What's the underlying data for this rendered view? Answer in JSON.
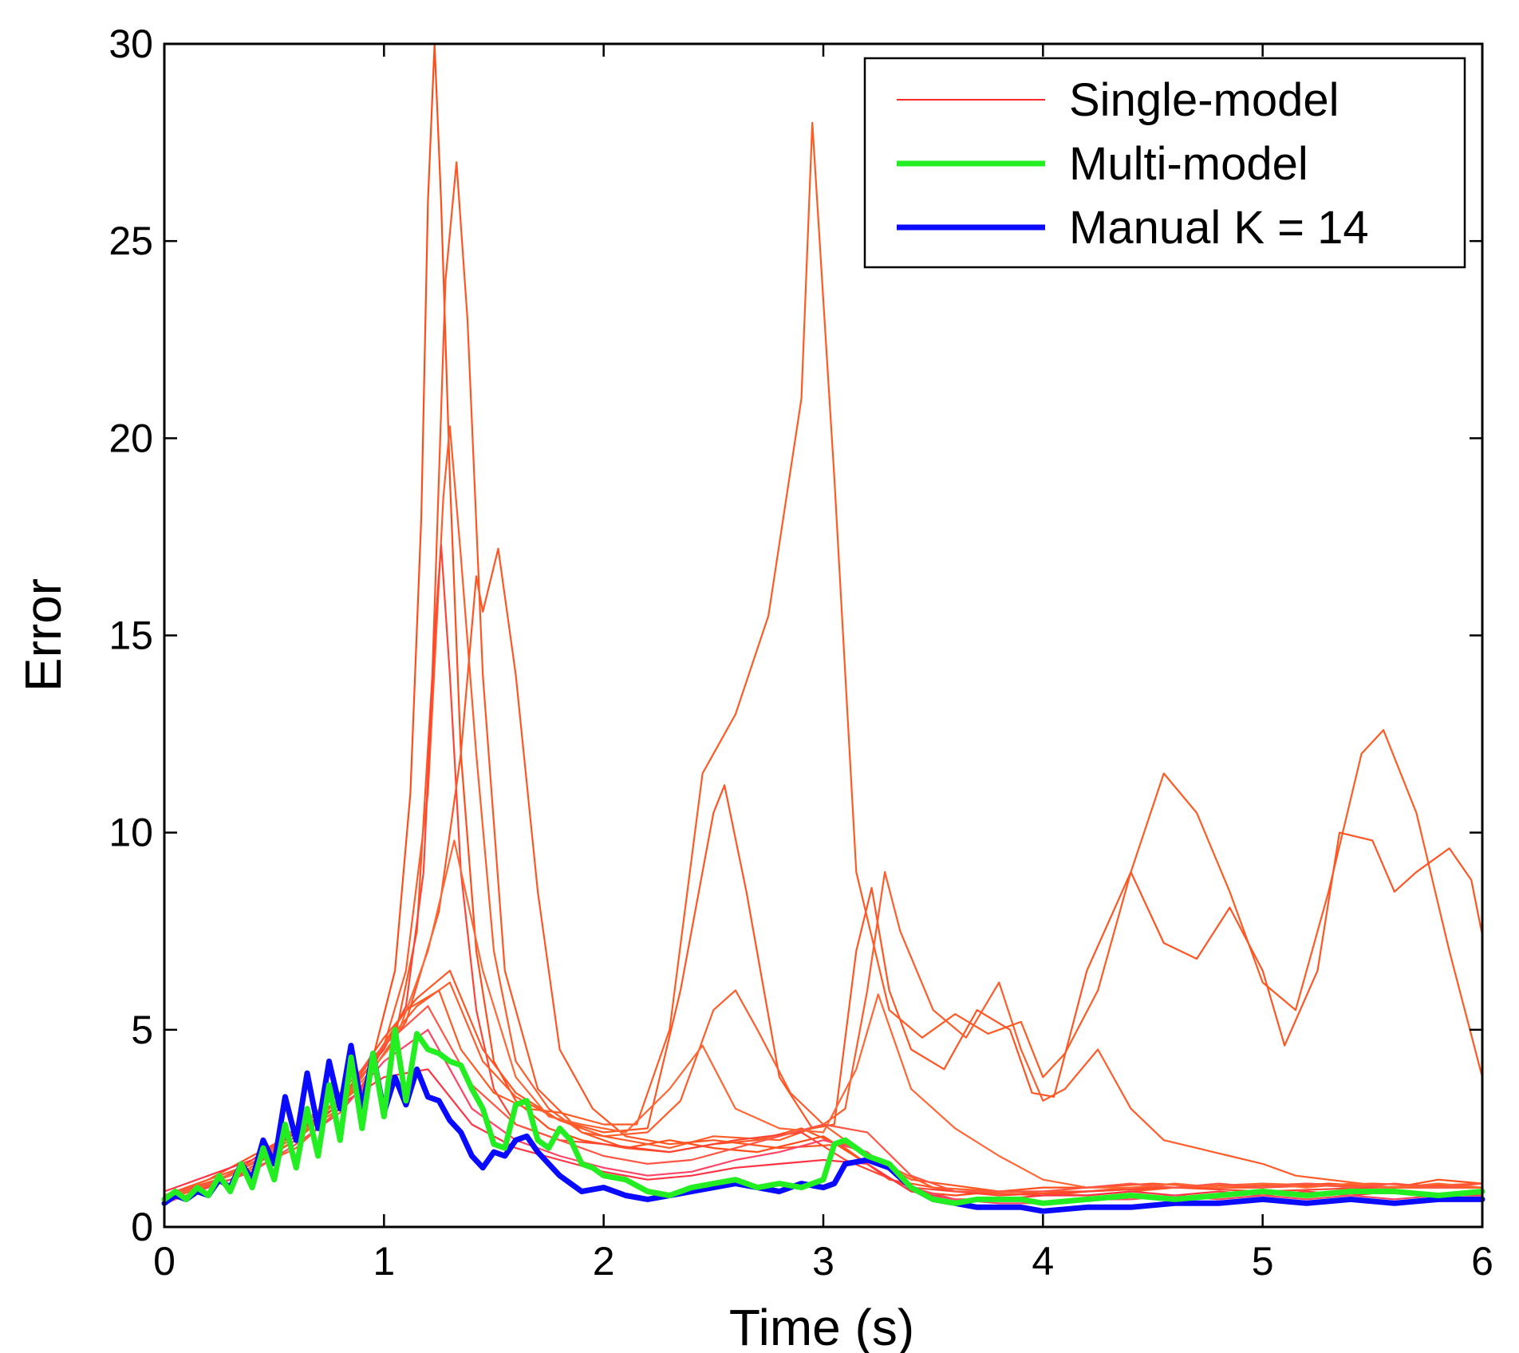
{
  "chart_data": {
    "type": "line",
    "xlabel": "Time (s)",
    "ylabel": "Error",
    "xlim": [
      0,
      6
    ],
    "ylim": [
      0,
      30
    ],
    "xticks": [
      0,
      1,
      2,
      3,
      4,
      5,
      6
    ],
    "yticks": [
      0,
      5,
      10,
      15,
      20,
      25,
      30
    ],
    "grid": false,
    "legend_position": "top-right",
    "legend": [
      {
        "label": "Single-model",
        "color": "#ff2a2a"
      },
      {
        "label": "Multi-model",
        "color": "#22ee22"
      },
      {
        "label": "Manual K = 14",
        "color": "#0a0aff"
      }
    ],
    "series": [
      {
        "name": "Single-model",
        "color": "#ff4d1a",
        "role": "single",
        "x": [
          0,
          0.2,
          0.4,
          0.6,
          0.8,
          0.95,
          1.05,
          1.12,
          1.17,
          1.2,
          1.23,
          1.26,
          1.3,
          1.35,
          1.42,
          1.5,
          1.6,
          1.75,
          1.9,
          2.1,
          2.3,
          2.5,
          2.7,
          2.85,
          3.0,
          3.2,
          3.4,
          3.6,
          3.8,
          4.0,
          4.2,
          4.5,
          4.8,
          5.0,
          5.3,
          5.6,
          5.8,
          6.0
        ],
        "y": [
          0.8,
          1.2,
          1.8,
          2.4,
          3.2,
          4.3,
          6.5,
          11,
          18,
          26,
          30,
          26,
          19,
          12,
          7,
          4.2,
          3.2,
          2.5,
          2.2,
          2.0,
          2.2,
          2.0,
          1.9,
          2.1,
          2.3,
          1.6,
          0.9,
          0.8,
          0.9,
          1.0,
          1.0,
          1.1,
          1.0,
          1.0,
          1.1,
          1.0,
          1.2,
          1.1
        ]
      },
      {
        "name": "Single-model",
        "color": "#ff5522",
        "role": "single",
        "x": [
          0,
          0.3,
          0.6,
          0.9,
          1.05,
          1.15,
          1.22,
          1.28,
          1.33,
          1.38,
          1.45,
          1.55,
          1.7,
          1.9,
          2.1,
          2.3,
          2.5,
          2.7,
          2.9,
          3.1,
          3.3,
          3.6,
          4.0,
          4.4,
          4.8,
          5.2,
          5.6,
          6.0
        ],
        "y": [
          0.7,
          1.3,
          2.5,
          3.6,
          4.8,
          7.5,
          14,
          24,
          27,
          23,
          14,
          6.5,
          3.5,
          2.4,
          2.0,
          1.9,
          2.1,
          2.2,
          2.5,
          2.0,
          1.2,
          0.9,
          0.8,
          1.0,
          1.0,
          1.1,
          1.0,
          1.0
        ]
      },
      {
        "name": "Single-model",
        "color": "#ff5c2a",
        "role": "single",
        "x": [
          0,
          0.3,
          0.6,
          0.9,
          1.0,
          1.1,
          1.2,
          1.27,
          1.3,
          1.35,
          1.42,
          1.5,
          1.6,
          1.75,
          1.9,
          2.1,
          2.3,
          2.5,
          2.8,
          3.0,
          3.2,
          3.5,
          3.8,
          4.2,
          4.6,
          5.0,
          5.5,
          6.0
        ],
        "y": [
          0.8,
          1.2,
          2.0,
          3.5,
          4.6,
          6.5,
          11,
          18.5,
          20.3,
          17,
          12,
          7,
          4.2,
          3.0,
          2.4,
          2.2,
          2.0,
          2.3,
          2.2,
          2.6,
          1.8,
          1.0,
          0.9,
          0.9,
          1.0,
          1.1,
          1.0,
          1.1
        ]
      },
      {
        "name": "Single-model",
        "color": "#ff4433",
        "role": "single",
        "x": [
          0,
          0.4,
          0.8,
          1.0,
          1.1,
          1.18,
          1.23,
          1.26,
          1.3,
          1.35,
          1.42,
          1.5,
          1.6,
          1.8,
          2.0,
          2.3,
          2.6,
          2.9,
          3.1,
          3.4,
          3.8,
          4.2,
          4.6,
          5.0,
          5.5,
          6.0
        ],
        "y": [
          0.8,
          1.6,
          3.2,
          4.5,
          5.6,
          9,
          15,
          17.3,
          14,
          9,
          5.5,
          3.5,
          2.6,
          2.2,
          2.1,
          1.9,
          2.2,
          2.4,
          1.7,
          1.0,
          0.8,
          0.9,
          1.0,
          0.9,
          1.0,
          1.0
        ]
      },
      {
        "name": "Single-model",
        "color": "#ff5522",
        "role": "single",
        "x": [
          0,
          0.3,
          0.6,
          0.9,
          1.1,
          1.25,
          1.35,
          1.42,
          1.45,
          1.52,
          1.6,
          1.7,
          1.8,
          1.95,
          2.1,
          2.3,
          2.5,
          2.8,
          3.1,
          3.4,
          3.8,
          4.2,
          4.6,
          5.0,
          5.5,
          6.0
        ],
        "y": [
          0.7,
          1.2,
          2.2,
          3.6,
          5.2,
          8,
          12,
          16.5,
          15.6,
          17.2,
          14,
          8.5,
          4.5,
          3.0,
          2.3,
          2.1,
          2.2,
          2.0,
          2.1,
          1.2,
          0.9,
          0.8,
          1.0,
          1.0,
          1.1,
          1.0
        ]
      },
      {
        "name": "Single-model",
        "color": "#ff5a22",
        "role": "single",
        "x": [
          0,
          0.3,
          0.6,
          0.9,
          1.1,
          1.25,
          1.35,
          1.5,
          1.65,
          1.8,
          2.0,
          2.15,
          2.3,
          2.45,
          2.6,
          2.75,
          2.9,
          2.95,
          3.05,
          3.15,
          3.3,
          3.45,
          3.6,
          3.75,
          3.9,
          4.0,
          4.1,
          4.25,
          4.4,
          4.55,
          4.7,
          4.85,
          5.0,
          5.15,
          5.3,
          5.45,
          5.55,
          5.7,
          5.85,
          6.0
        ],
        "y": [
          0.8,
          1.3,
          2.2,
          3.8,
          5.5,
          6.0,
          4.5,
          3.4,
          3.0,
          2.9,
          2.6,
          2.6,
          5.0,
          11.5,
          13.0,
          15.5,
          21,
          28,
          19,
          9,
          5.5,
          4.8,
          5.4,
          4.9,
          5.2,
          3.8,
          4.4,
          6.0,
          9.0,
          11.5,
          10.5,
          8.5,
          6.2,
          5.5,
          8.5,
          12.0,
          12.6,
          10.5,
          7.0,
          3.8
        ]
      },
      {
        "name": "Single-model",
        "color": "#ff5522",
        "role": "single",
        "x": [
          0,
          0.4,
          0.8,
          1.0,
          1.15,
          1.3,
          1.45,
          1.6,
          1.8,
          2.0,
          2.2,
          2.35,
          2.5,
          2.55,
          2.65,
          2.8,
          2.95,
          3.05,
          3.15,
          3.22,
          3.3,
          3.4,
          3.55,
          3.7,
          3.85,
          3.95,
          4.05,
          4.2,
          4.4,
          4.55,
          4.7,
          4.85,
          5.0,
          5.1,
          5.25,
          5.35,
          5.5,
          5.6,
          5.7,
          5.85,
          5.95,
          6.0
        ],
        "y": [
          0.8,
          1.6,
          3.2,
          4.8,
          5.8,
          6.5,
          4.5,
          3.4,
          2.7,
          2.4,
          2.5,
          6.0,
          10.5,
          11.2,
          8.5,
          3.8,
          2.5,
          2.6,
          7.0,
          8.6,
          6.0,
          4.5,
          4.0,
          5.5,
          5.0,
          3.4,
          3.3,
          6.5,
          9.0,
          7.2,
          6.8,
          8.1,
          6.5,
          4.6,
          6.5,
          10.0,
          9.8,
          8.5,
          9.0,
          9.6,
          8.8,
          7.4
        ]
      },
      {
        "name": "Single-model",
        "color": "#ff5c2a",
        "role": "single",
        "x": [
          0,
          0.4,
          0.8,
          1.0,
          1.15,
          1.3,
          1.45,
          1.6,
          1.8,
          2.0,
          2.2,
          2.35,
          2.5,
          2.6,
          2.7,
          2.85,
          3.0,
          3.1,
          3.2,
          3.28,
          3.35,
          3.5,
          3.65,
          3.8,
          3.9,
          4.0,
          4.1,
          4.25,
          4.4,
          4.55,
          4.7,
          4.85,
          5.0,
          5.15,
          5.3,
          5.45,
          5.55,
          5.7,
          5.85,
          6.0
        ],
        "y": [
          0.8,
          1.6,
          3.0,
          4.6,
          5.6,
          6.2,
          4.2,
          3.3,
          2.7,
          2.3,
          2.4,
          3.2,
          5.5,
          6.0,
          5.0,
          3.4,
          2.6,
          3.0,
          6.0,
          9.0,
          7.5,
          5.5,
          4.8,
          6.2,
          4.5,
          3.2,
          3.5,
          4.5,
          3.0,
          2.2,
          2.0,
          1.8,
          1.6,
          1.3,
          1.2,
          1.1,
          1.0,
          1.0,
          1.0,
          1.0
        ]
      },
      {
        "name": "Single-model",
        "color": "#ff6633",
        "role": "single",
        "x": [
          0,
          0.3,
          0.6,
          0.9,
          1.05,
          1.2,
          1.32,
          1.45,
          1.6,
          1.75,
          1.9,
          2.1,
          2.3,
          2.45,
          2.6,
          2.8,
          3.0,
          3.15,
          3.25,
          3.4,
          3.6,
          3.8,
          4.0,
          4.2,
          4.4,
          4.6,
          4.8,
          5.0,
          5.2,
          5.4,
          5.6,
          5.8,
          6.0
        ],
        "y": [
          0.7,
          1.3,
          2.3,
          3.7,
          4.7,
          7.0,
          9.8,
          6.5,
          3.8,
          2.8,
          2.6,
          2.4,
          3.5,
          4.6,
          3.0,
          2.5,
          2.4,
          4.0,
          5.9,
          3.5,
          2.5,
          1.8,
          1.2,
          1.0,
          1.0,
          1.1,
          1.0,
          1.1,
          1.0,
          1.1,
          1.0,
          1.1,
          1.0
        ]
      },
      {
        "name": "Single-model",
        "color": "#ff3344",
        "role": "single",
        "x": [
          0,
          0.2,
          0.4,
          0.6,
          0.8,
          1.0,
          1.2,
          1.4,
          1.6,
          1.8,
          2.0,
          2.2,
          2.4,
          2.6,
          2.8,
          3.0,
          3.2,
          3.4,
          3.6,
          3.8,
          4.0,
          4.2,
          4.4,
          4.6,
          4.8,
          5.0,
          5.2,
          5.4,
          5.6,
          5.8,
          6.0
        ],
        "y": [
          0.9,
          1.3,
          1.7,
          2.4,
          3.1,
          3.8,
          4.0,
          2.6,
          2.0,
          1.7,
          1.4,
          1.2,
          1.3,
          1.5,
          1.6,
          1.7,
          1.6,
          0.9,
          0.7,
          0.7,
          0.8,
          0.8,
          0.9,
          0.8,
          0.9,
          0.8,
          0.9,
          0.8,
          0.9,
          0.8,
          0.8
        ]
      },
      {
        "name": "Single-model",
        "color": "#ff4466",
        "role": "single",
        "x": [
          0,
          0.2,
          0.4,
          0.6,
          0.8,
          1.0,
          1.2,
          1.4,
          1.6,
          1.8,
          2.0,
          2.2,
          2.4,
          2.6,
          2.8,
          3.0,
          3.2,
          3.4,
          3.6,
          3.8,
          4.0,
          4.2,
          4.4,
          4.6,
          4.8,
          5.0,
          5.2,
          5.4,
          5.6,
          5.8,
          6.0
        ],
        "y": [
          0.6,
          1.0,
          1.4,
          2.1,
          2.9,
          4.2,
          5.0,
          3.0,
          2.2,
          1.8,
          1.5,
          1.3,
          1.4,
          1.7,
          1.9,
          2.2,
          1.9,
          1.0,
          0.7,
          0.6,
          0.6,
          0.7,
          0.7,
          0.8,
          0.7,
          0.8,
          0.7,
          0.8,
          0.7,
          0.8,
          0.7
        ]
      },
      {
        "name": "Single-model",
        "color": "#ff5544",
        "role": "single",
        "x": [
          0,
          0.2,
          0.4,
          0.6,
          0.8,
          1.0,
          1.2,
          1.4,
          1.6,
          1.8,
          2.0,
          2.2,
          2.4,
          2.6,
          2.8,
          3.0,
          3.2,
          3.4,
          3.6,
          3.8,
          4.0,
          4.2,
          4.4,
          4.6,
          4.8,
          5.0,
          5.2,
          5.4,
          5.6,
          5.8,
          6.0
        ],
        "y": [
          0.8,
          1.1,
          1.6,
          2.5,
          3.4,
          4.6,
          5.6,
          3.6,
          2.6,
          2.2,
          1.8,
          1.6,
          1.7,
          2.0,
          2.3,
          2.6,
          2.4,
          1.3,
          0.9,
          0.9,
          0.9,
          1.0,
          1.1,
          1.0,
          1.1,
          1.0,
          1.1,
          1.0,
          1.1,
          1.0,
          1.1
        ]
      },
      {
        "name": "Multi-model",
        "color": "#22ee22",
        "role": "multi",
        "x": [
          0,
          0.05,
          0.1,
          0.15,
          0.2,
          0.25,
          0.3,
          0.35,
          0.4,
          0.45,
          0.5,
          0.55,
          0.6,
          0.65,
          0.7,
          0.75,
          0.8,
          0.85,
          0.9,
          0.95,
          1.0,
          1.05,
          1.1,
          1.15,
          1.2,
          1.25,
          1.3,
          1.35,
          1.4,
          1.45,
          1.5,
          1.55,
          1.6,
          1.65,
          1.7,
          1.75,
          1.8,
          1.85,
          1.9,
          1.95,
          2.0,
          2.1,
          2.2,
          2.3,
          2.4,
          2.5,
          2.6,
          2.7,
          2.8,
          2.9,
          3.0,
          3.05,
          3.1,
          3.2,
          3.3,
          3.4,
          3.5,
          3.6,
          3.7,
          3.8,
          3.9,
          4.0,
          4.2,
          4.4,
          4.6,
          4.8,
          5.0,
          5.2,
          5.4,
          5.6,
          5.8,
          6.0
        ],
        "y": [
          0.7,
          0.9,
          0.7,
          1.0,
          0.8,
          1.3,
          0.9,
          1.6,
          1.0,
          2.0,
          1.2,
          2.6,
          1.5,
          3.0,
          1.8,
          3.6,
          2.2,
          4.3,
          2.5,
          4.4,
          2.8,
          5.0,
          3.2,
          4.9,
          4.5,
          4.4,
          4.2,
          4.1,
          3.5,
          3.0,
          2.1,
          2.0,
          3.1,
          3.2,
          2.2,
          2.0,
          2.5,
          2.2,
          1.6,
          1.5,
          1.3,
          1.2,
          0.9,
          0.8,
          1.0,
          1.1,
          1.2,
          1.0,
          1.1,
          1.0,
          1.2,
          2.1,
          2.2,
          1.8,
          1.6,
          1.0,
          0.7,
          0.6,
          0.7,
          0.7,
          0.7,
          0.6,
          0.7,
          0.8,
          0.7,
          0.8,
          0.9,
          0.8,
          0.9,
          0.9,
          0.8,
          0.9
        ]
      },
      {
        "name": "Manual K = 14",
        "color": "#0a0aff",
        "role": "manual",
        "x": [
          0,
          0.05,
          0.1,
          0.15,
          0.2,
          0.25,
          0.3,
          0.35,
          0.4,
          0.45,
          0.5,
          0.55,
          0.6,
          0.65,
          0.7,
          0.75,
          0.8,
          0.85,
          0.9,
          0.95,
          1.0,
          1.05,
          1.1,
          1.15,
          1.2,
          1.25,
          1.3,
          1.35,
          1.4,
          1.45,
          1.5,
          1.55,
          1.6,
          1.65,
          1.7,
          1.75,
          1.8,
          1.85,
          1.9,
          2.0,
          2.1,
          2.2,
          2.3,
          2.4,
          2.5,
          2.6,
          2.7,
          2.8,
          2.9,
          3.0,
          3.05,
          3.1,
          3.2,
          3.3,
          3.4,
          3.5,
          3.6,
          3.7,
          3.8,
          3.9,
          4.0,
          4.2,
          4.4,
          4.6,
          4.8,
          5.0,
          5.2,
          5.4,
          5.6,
          5.8,
          6.0
        ],
        "y": [
          0.6,
          0.8,
          0.7,
          0.9,
          0.8,
          1.2,
          1.0,
          1.6,
          1.2,
          2.2,
          1.6,
          3.3,
          2.2,
          3.9,
          2.5,
          4.2,
          3.0,
          4.6,
          3.0,
          4.4,
          2.9,
          3.8,
          3.1,
          4.0,
          3.3,
          3.2,
          2.7,
          2.4,
          1.8,
          1.5,
          1.9,
          1.8,
          2.2,
          2.3,
          1.9,
          1.6,
          1.3,
          1.1,
          0.9,
          1.0,
          0.8,
          0.7,
          0.8,
          0.9,
          1.0,
          1.1,
          1.0,
          0.9,
          1.1,
          1.0,
          1.1,
          1.6,
          1.7,
          1.5,
          1.0,
          0.7,
          0.6,
          0.5,
          0.5,
          0.5,
          0.4,
          0.5,
          0.5,
          0.6,
          0.6,
          0.7,
          0.6,
          0.7,
          0.6,
          0.7,
          0.7
        ]
      }
    ]
  }
}
